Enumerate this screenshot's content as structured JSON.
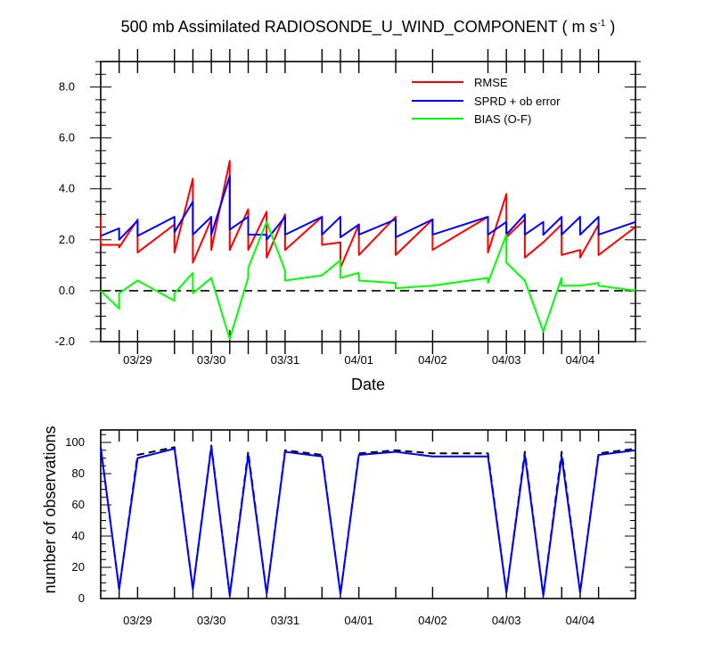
{
  "title": {
    "prefix": "500 mb Assimilated RADIOSONDE_U_WIND_COMPONENT ( m s",
    "sup": "-1",
    "suffix": " )"
  },
  "chart_data": [
    {
      "type": "line",
      "name": "top-panel",
      "xlabel": "Date",
      "ylabel": "",
      "x_tick_labels": [
        "03/29",
        "03/30",
        "03/31",
        "04/01",
        "04/02",
        "04/03",
        "04/04"
      ],
      "xlim": [
        0,
        29
      ],
      "ylim": [
        -2.0,
        9.0
      ],
      "y_ticks": [
        "-2.0",
        "0.0",
        "2.0",
        "4.0",
        "6.0",
        "8.0"
      ],
      "zero_line": true,
      "legend_position": "top-right",
      "series": [
        {
          "name": "RMSE",
          "color": "#ff0000",
          "points": [
            [
              0,
              2.9
            ],
            [
              0,
              1.8
            ],
            [
              1,
              1.8
            ],
            [
              1,
              1.7
            ],
            [
              2,
              2.8
            ],
            [
              2,
              1.5
            ],
            [
              4,
              2.6
            ],
            [
              4,
              1.5
            ],
            [
              5,
              4.4
            ],
            [
              5,
              1.1
            ],
            [
              6,
              2.8
            ],
            [
              6,
              1.6
            ],
            [
              7,
              5.1
            ],
            [
              7,
              1.6
            ],
            [
              8,
              3.2
            ],
            [
              8,
              1.6
            ],
            [
              9,
              3.1
            ],
            [
              9,
              1.3
            ],
            [
              10,
              3.0
            ],
            [
              10,
              1.6
            ],
            [
              12,
              2.9
            ],
            [
              12,
              1.8
            ],
            [
              13,
              1.9
            ],
            [
              13,
              0.9
            ],
            [
              14,
              2.6
            ],
            [
              14,
              1.4
            ],
            [
              16,
              2.9
            ],
            [
              16,
              1.4
            ],
            [
              18,
              2.8
            ],
            [
              18,
              1.6
            ],
            [
              21,
              2.9
            ],
            [
              21,
              1.5
            ],
            [
              22,
              3.8
            ],
            [
              22,
              2.1
            ],
            [
              23,
              2.8
            ],
            [
              23,
              1.3
            ],
            [
              24,
              1.9
            ],
            [
              24,
              1.9
            ],
            [
              25,
              2.6
            ],
            [
              25,
              1.4
            ],
            [
              26,
              1.6
            ],
            [
              26,
              1.3
            ],
            [
              27,
              2.6
            ],
            [
              27,
              1.4
            ],
            [
              29,
              2.5
            ]
          ]
        },
        {
          "name": "SPRD + ob error",
          "color": "#0000ff",
          "points": [
            [
              0,
              2.15
            ],
            [
              1,
              2.45
            ],
            [
              1,
              2.0
            ],
            [
              2,
              2.75
            ],
            [
              2,
              2.15
            ],
            [
              4,
              2.9
            ],
            [
              4,
              2.3
            ],
            [
              5,
              3.5
            ],
            [
              5,
              2.2
            ],
            [
              6,
              2.9
            ],
            [
              6,
              2.2
            ],
            [
              7,
              4.5
            ],
            [
              7,
              2.4
            ],
            [
              8,
              2.9
            ],
            [
              8,
              2.2
            ],
            [
              9,
              2.2
            ],
            [
              9,
              2.0
            ],
            [
              10,
              2.9
            ],
            [
              10,
              2.2
            ],
            [
              12,
              2.9
            ],
            [
              12,
              2.2
            ],
            [
              13,
              2.9
            ],
            [
              13,
              2.1
            ],
            [
              14,
              2.6
            ],
            [
              14,
              2.2
            ],
            [
              16,
              2.8
            ],
            [
              16,
              2.1
            ],
            [
              18,
              2.8
            ],
            [
              18,
              2.2
            ],
            [
              21,
              2.9
            ],
            [
              21,
              2.2
            ],
            [
              22,
              2.7
            ],
            [
              22,
              2.2
            ],
            [
              23,
              3.0
            ],
            [
              23,
              2.2
            ],
            [
              24,
              2.7
            ],
            [
              24,
              2.2
            ],
            [
              25,
              2.9
            ],
            [
              25,
              2.2
            ],
            [
              26,
              2.9
            ],
            [
              26,
              2.2
            ],
            [
              27,
              2.9
            ],
            [
              27,
              2.2
            ],
            [
              29,
              2.7
            ]
          ]
        },
        {
          "name": "BIAS (O-F)",
          "color": "#00ff00",
          "points": [
            [
              0,
              0.0
            ],
            [
              1,
              -0.7
            ],
            [
              1,
              -0.1
            ],
            [
              2,
              0.4
            ],
            [
              4,
              -0.4
            ],
            [
              4,
              -0.1
            ],
            [
              5,
              0.7
            ],
            [
              5,
              -0.1
            ],
            [
              6,
              0.5
            ],
            [
              7,
              -1.9
            ],
            [
              8,
              0.5
            ],
            [
              8,
              0.9
            ],
            [
              9,
              2.7
            ],
            [
              10,
              0.8
            ],
            [
              10,
              0.4
            ],
            [
              12,
              0.6
            ],
            [
              13,
              1.2
            ],
            [
              13,
              0.5
            ],
            [
              14,
              0.7
            ],
            [
              14,
              0.4
            ],
            [
              16,
              0.3
            ],
            [
              16,
              0.1
            ],
            [
              18,
              0.2
            ],
            [
              21,
              0.5
            ],
            [
              21,
              0.3
            ],
            [
              22,
              2.2
            ],
            [
              22,
              1.1
            ],
            [
              23,
              0.4
            ],
            [
              24,
              -1.6
            ],
            [
              25,
              0.5
            ],
            [
              25,
              0.2
            ],
            [
              26,
              0.2
            ],
            [
              27,
              0.3
            ],
            [
              27,
              0.2
            ],
            [
              29,
              0.0
            ]
          ]
        }
      ]
    },
    {
      "type": "line",
      "name": "bottom-panel",
      "ylabel": "number of observations",
      "x_tick_labels": [
        "03/29",
        "03/30",
        "03/31",
        "04/01",
        "04/02",
        "04/03",
        "04/04"
      ],
      "xlim": [
        0,
        29
      ],
      "ylim": [
        0,
        108
      ],
      "y_ticks": [
        "0",
        "20",
        "40",
        "60",
        "80",
        "100"
      ],
      "series": [
        {
          "name": "dashed",
          "color": "#000000",
          "dash": true,
          "points": [
            [
              0,
              97
            ],
            [
              1,
              6
            ],
            [
              2,
              92
            ],
            [
              4,
              97
            ],
            [
              5,
              6
            ],
            [
              6,
              98
            ],
            [
              7,
              2
            ],
            [
              8,
              94
            ],
            [
              9,
              3
            ],
            [
              10,
              95
            ],
            [
              12,
              92
            ],
            [
              13,
              3
            ],
            [
              14,
              93
            ],
            [
              16,
              95
            ],
            [
              18,
              93
            ],
            [
              21,
              93
            ],
            [
              22,
              4
            ],
            [
              23,
              94
            ],
            [
              24,
              2
            ],
            [
              25,
              94
            ],
            [
              26,
              4
            ],
            [
              27,
              93
            ],
            [
              29,
              96
            ]
          ]
        },
        {
          "name": "solid",
          "color": "#0000ff",
          "dash": false,
          "points": [
            [
              0,
              97
            ],
            [
              1,
              6
            ],
            [
              2,
              90
            ],
            [
              4,
              96
            ],
            [
              5,
              6
            ],
            [
              6,
              97
            ],
            [
              7,
              2
            ],
            [
              8,
              92
            ],
            [
              9,
              3
            ],
            [
              10,
              94
            ],
            [
              12,
              91
            ],
            [
              13,
              3
            ],
            [
              14,
              92
            ],
            [
              16,
              94
            ],
            [
              18,
              91
            ],
            [
              21,
              91
            ],
            [
              22,
              4
            ],
            [
              23,
              92
            ],
            [
              24,
              2
            ],
            [
              25,
              91
            ],
            [
              26,
              4
            ],
            [
              27,
              92
            ],
            [
              29,
              95
            ]
          ]
        }
      ]
    }
  ]
}
